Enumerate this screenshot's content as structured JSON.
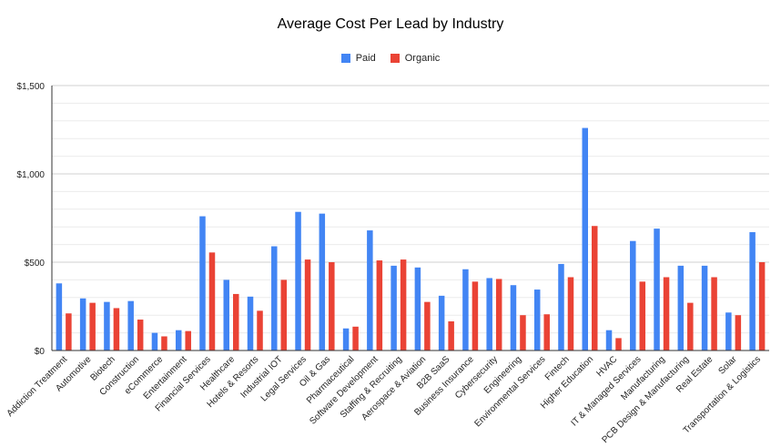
{
  "chart_data": {
    "type": "bar",
    "title": "Average Cost Per Lead by Industry",
    "xlabel": "",
    "ylabel": "",
    "ylim": [
      0,
      1500
    ],
    "yticks": [
      "$0",
      "$500",
      "$1,000",
      "$1,500"
    ],
    "ytick_values": [
      0,
      500,
      1000,
      1500
    ],
    "grid": true,
    "legend_position": "top-center",
    "categories": [
      "Addiction Treatment",
      "Automotive",
      "Biotech",
      "Construction",
      "eCommerce",
      "Entertainment",
      "Financial Services",
      "Healthcare",
      "Hotels & Resorts",
      "Industrial IOT",
      "Legal Services",
      "Oil & Gas",
      "Pharmaceutical",
      "Software Development",
      "Staffing & Recruiting",
      "Aerospace & Aviation",
      "B2B SaaS",
      "Business Insurance",
      "Cybersecurity",
      "Engineering",
      "Environmental Services",
      "Fintech",
      "Higher Education",
      "HVAC",
      "IT & Managed Services",
      "Manufacturing",
      "PCB Design & Manufacturing",
      "Real Estate",
      "Solar",
      "Transportation & Logistics"
    ],
    "series": [
      {
        "name": "Paid",
        "color": "#4285f4",
        "values": [
          380,
          295,
          275,
          280,
          100,
          115,
          760,
          400,
          305,
          590,
          785,
          775,
          125,
          680,
          480,
          470,
          310,
          460,
          410,
          370,
          345,
          490,
          1260,
          115,
          620,
          690,
          480,
          480,
          215,
          670
        ]
      },
      {
        "name": "Organic",
        "color": "#ea4335",
        "values": [
          210,
          270,
          240,
          175,
          80,
          110,
          555,
          320,
          225,
          400,
          515,
          500,
          135,
          510,
          515,
          275,
          165,
          390,
          405,
          200,
          205,
          415,
          705,
          70,
          390,
          415,
          270,
          415,
          200,
          500
        ]
      }
    ]
  }
}
